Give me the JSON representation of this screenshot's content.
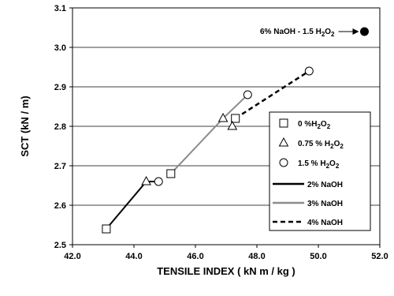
{
  "chart_data": {
    "type": "scatter",
    "xlabel": "TENSILE INDEX ( kN m / kg )",
    "ylabel": "SCT (kN / m)",
    "xlim": [
      42.0,
      52.0
    ],
    "ylim": [
      2.5,
      3.1
    ],
    "x_ticks": [
      "42.0",
      "44.0",
      "46.0",
      "48.0",
      "50.0",
      "52.0"
    ],
    "y_ticks": [
      "2.5",
      "2.6",
      "2.7",
      "2.8",
      "2.9",
      "3.0",
      "3.1"
    ],
    "grid": "horizontal",
    "legend_position": "right",
    "marker_series": [
      {
        "key": "h0",
        "label_main": "0 %H",
        "label_sub": "2",
        "label_tail": "O",
        "label_sub2": "2",
        "marker": "square",
        "points": [
          {
            "x": 43.1,
            "y": 2.54
          },
          {
            "x": 45.2,
            "y": 2.68
          },
          {
            "x": 47.3,
            "y": 2.82
          }
        ]
      },
      {
        "key": "h075",
        "label_main": "0.75 % H",
        "label_sub": "2",
        "label_tail": "O",
        "label_sub2": "2",
        "marker": "triangle",
        "points": [
          {
            "x": 44.4,
            "y": 2.66
          },
          {
            "x": 46.9,
            "y": 2.82
          },
          {
            "x": 47.2,
            "y": 2.8
          }
        ]
      },
      {
        "key": "h15",
        "label_main": "1.5 % H",
        "label_sub": "2",
        "label_tail": "O",
        "label_sub2": "2",
        "marker": "circle",
        "points": [
          {
            "x": 44.8,
            "y": 2.66
          },
          {
            "x": 47.7,
            "y": 2.88
          },
          {
            "x": 49.7,
            "y": 2.94
          }
        ]
      }
    ],
    "line_series": [
      {
        "key": "naoh2",
        "label": "2% NaOH",
        "style": "solid",
        "color": "#000000",
        "points": [
          {
            "x": 43.1,
            "y": 2.54
          },
          {
            "x": 44.4,
            "y": 2.66
          },
          {
            "x": 44.8,
            "y": 2.66
          }
        ]
      },
      {
        "key": "naoh3",
        "label": "3% NaOH",
        "style": "solid",
        "color": "#8c8c8c",
        "points": [
          {
            "x": 45.2,
            "y": 2.68
          },
          {
            "x": 46.9,
            "y": 2.82
          },
          {
            "x": 47.7,
            "y": 2.88
          }
        ]
      },
      {
        "key": "naoh4",
        "label": "4% NaOH",
        "style": "dashed",
        "color": "#000000",
        "points": [
          {
            "x": 47.3,
            "y": 2.82
          },
          {
            "x": 49.7,
            "y": 2.94
          }
        ]
      }
    ],
    "annotation": {
      "text_main": "6% NaOH - 1.5 H",
      "text_sub": "2",
      "text_tail": "O",
      "text_sub2": "2",
      "point": {
        "x": 51.5,
        "y": 3.04
      }
    }
  }
}
